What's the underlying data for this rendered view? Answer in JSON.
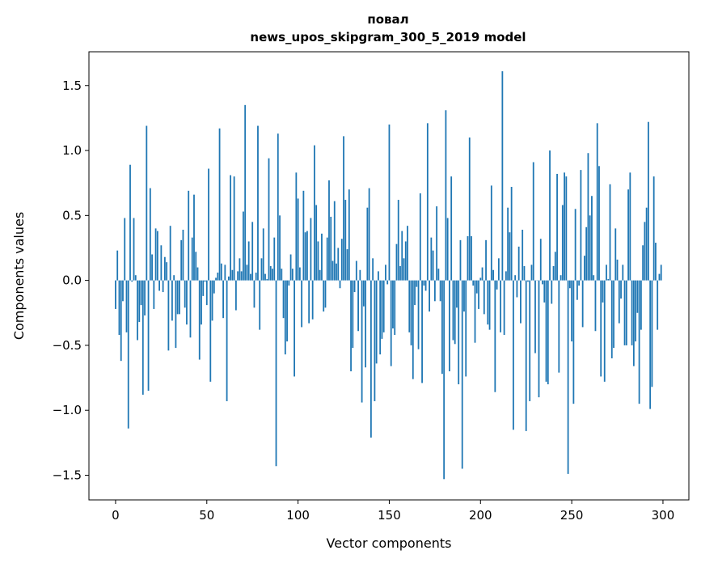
{
  "chart_data": {
    "type": "bar",
    "title_lines": [
      "повал",
      "news_upos_skipgram_300_5_2019 model"
    ],
    "xlabel": "Vector components",
    "ylabel": "Components values",
    "xlim": [
      -14.6,
      314.2
    ],
    "ylim": [
      -1.69,
      1.76
    ],
    "xticks": [
      0,
      50,
      100,
      150,
      200,
      250,
      300
    ],
    "xtick_labels": [
      "0",
      "50",
      "100",
      "150",
      "200",
      "250",
      "300"
    ],
    "yticks": [
      -1.5,
      -1.0,
      -0.5,
      0.0,
      0.5,
      1.0,
      1.5
    ],
    "ytick_labels": [
      "−1.5",
      "−1.0",
      "−0.5",
      "0.0",
      "0.5",
      "1.0",
      "1.5"
    ],
    "bar_color": "#1f77b4",
    "grid": false,
    "values": [
      -0.22,
      0.23,
      -0.42,
      -0.62,
      -0.16,
      0.48,
      -0.4,
      -1.14,
      0.89,
      -0.01,
      0.48,
      0.04,
      -0.46,
      -0.32,
      -0.19,
      -0.88,
      -0.27,
      1.19,
      -0.85,
      0.71,
      0.2,
      -0.22,
      0.4,
      0.38,
      -0.08,
      0.27,
      -0.09,
      0.18,
      0.14,
      -0.54,
      0.42,
      -0.31,
      0.04,
      -0.52,
      -0.26,
      -0.26,
      0.31,
      0.39,
      -0.21,
      -0.34,
      0.69,
      -0.44,
      0.33,
      0.66,
      0.22,
      0.1,
      -0.61,
      -0.34,
      -0.12,
      -0.01,
      -0.19,
      0.86,
      -0.78,
      -0.31,
      -0.1,
      0.02,
      0.06,
      1.17,
      0.13,
      -0.29,
      0.12,
      -0.93,
      0.03,
      0.81,
      0.08,
      0.8,
      -0.23,
      0.07,
      0.17,
      0.07,
      0.53,
      1.35,
      0.12,
      0.3,
      0.05,
      0.45,
      -0.21,
      0.06,
      1.19,
      -0.38,
      0.17,
      0.4,
      0.05,
      0.01,
      0.94,
      0.11,
      0.09,
      0.33,
      -1.43,
      1.13,
      0.5,
      0.09,
      -0.29,
      -0.57,
      -0.47,
      -0.04,
      0.2,
      0.09,
      -0.74,
      0.83,
      0.63,
      0.1,
      -0.36,
      0.69,
      0.37,
      0.38,
      -0.33,
      0.48,
      -0.3,
      1.04,
      0.58,
      0.3,
      0.08,
      0.36,
      -0.24,
      -0.21,
      0.33,
      0.77,
      0.49,
      0.15,
      0.61,
      0.13,
      0.25,
      -0.06,
      0.32,
      1.11,
      0.62,
      0.24,
      0.7,
      -0.7,
      -0.52,
      -0.09,
      0.15,
      -0.39,
      0.08,
      -0.94,
      -0.2,
      -0.67,
      0.56,
      0.71,
      -1.21,
      0.17,
      -0.93,
      -0.64,
      0.07,
      -0.57,
      -0.45,
      -0.4,
      0.12,
      -0.03,
      1.2,
      -0.66,
      -0.37,
      -0.42,
      0.28,
      0.62,
      0.11,
      0.38,
      0.17,
      0.3,
      0.42,
      -0.4,
      -0.5,
      -0.76,
      -0.19,
      -0.05,
      -0.53,
      0.67,
      -0.79,
      -0.04,
      -0.08,
      1.21,
      -0.24,
      0.33,
      0.23,
      -0.16,
      0.57,
      0.09,
      -0.16,
      -0.72,
      -1.53,
      1.31,
      0.48,
      -0.7,
      0.8,
      -0.46,
      -0.49,
      -0.21,
      -0.8,
      0.31,
      -1.45,
      -0.24,
      -0.74,
      0.34,
      1.1,
      0.34,
      -0.04,
      -0.48,
      -0.1,
      -0.22,
      0.02,
      0.1,
      -0.26,
      0.31,
      -0.34,
      -0.38,
      0.73,
      0.08,
      -0.86,
      -0.07,
      0.17,
      -0.4,
      1.61,
      -0.42,
      0.07,
      0.56,
      0.37,
      0.72,
      -1.15,
      0.04,
      -0.13,
      0.26,
      -0.33,
      0.39,
      0.11,
      -1.16,
      -0.01,
      -0.93,
      0.12,
      0.91,
      -0.56,
      0.0,
      -0.9,
      0.32,
      -0.03,
      -0.17,
      -0.78,
      -0.8,
      1.0,
      -0.18,
      0.11,
      0.22,
      0.82,
      -0.71,
      0.04,
      0.58,
      0.83,
      0.8,
      -1.49,
      -0.06,
      -0.47,
      -0.95,
      0.55,
      -0.15,
      -0.04,
      0.85,
      -0.36,
      0.19,
      0.41,
      0.98,
      0.5,
      0.65,
      0.04,
      -0.39,
      1.21,
      0.88,
      -0.74,
      -0.17,
      -0.78,
      0.12,
      0.01,
      0.74,
      -0.6,
      -0.52,
      0.4,
      0.16,
      -0.33,
      -0.14,
      0.12,
      -0.5,
      -0.5,
      0.7,
      0.83,
      -0.5,
      -0.66,
      -0.47,
      -0.25,
      -0.95,
      -0.38,
      0.27,
      0.45,
      0.56,
      1.22,
      -0.99,
      -0.82,
      0.8,
      0.29,
      -0.38,
      0.05,
      0.12
    ]
  }
}
